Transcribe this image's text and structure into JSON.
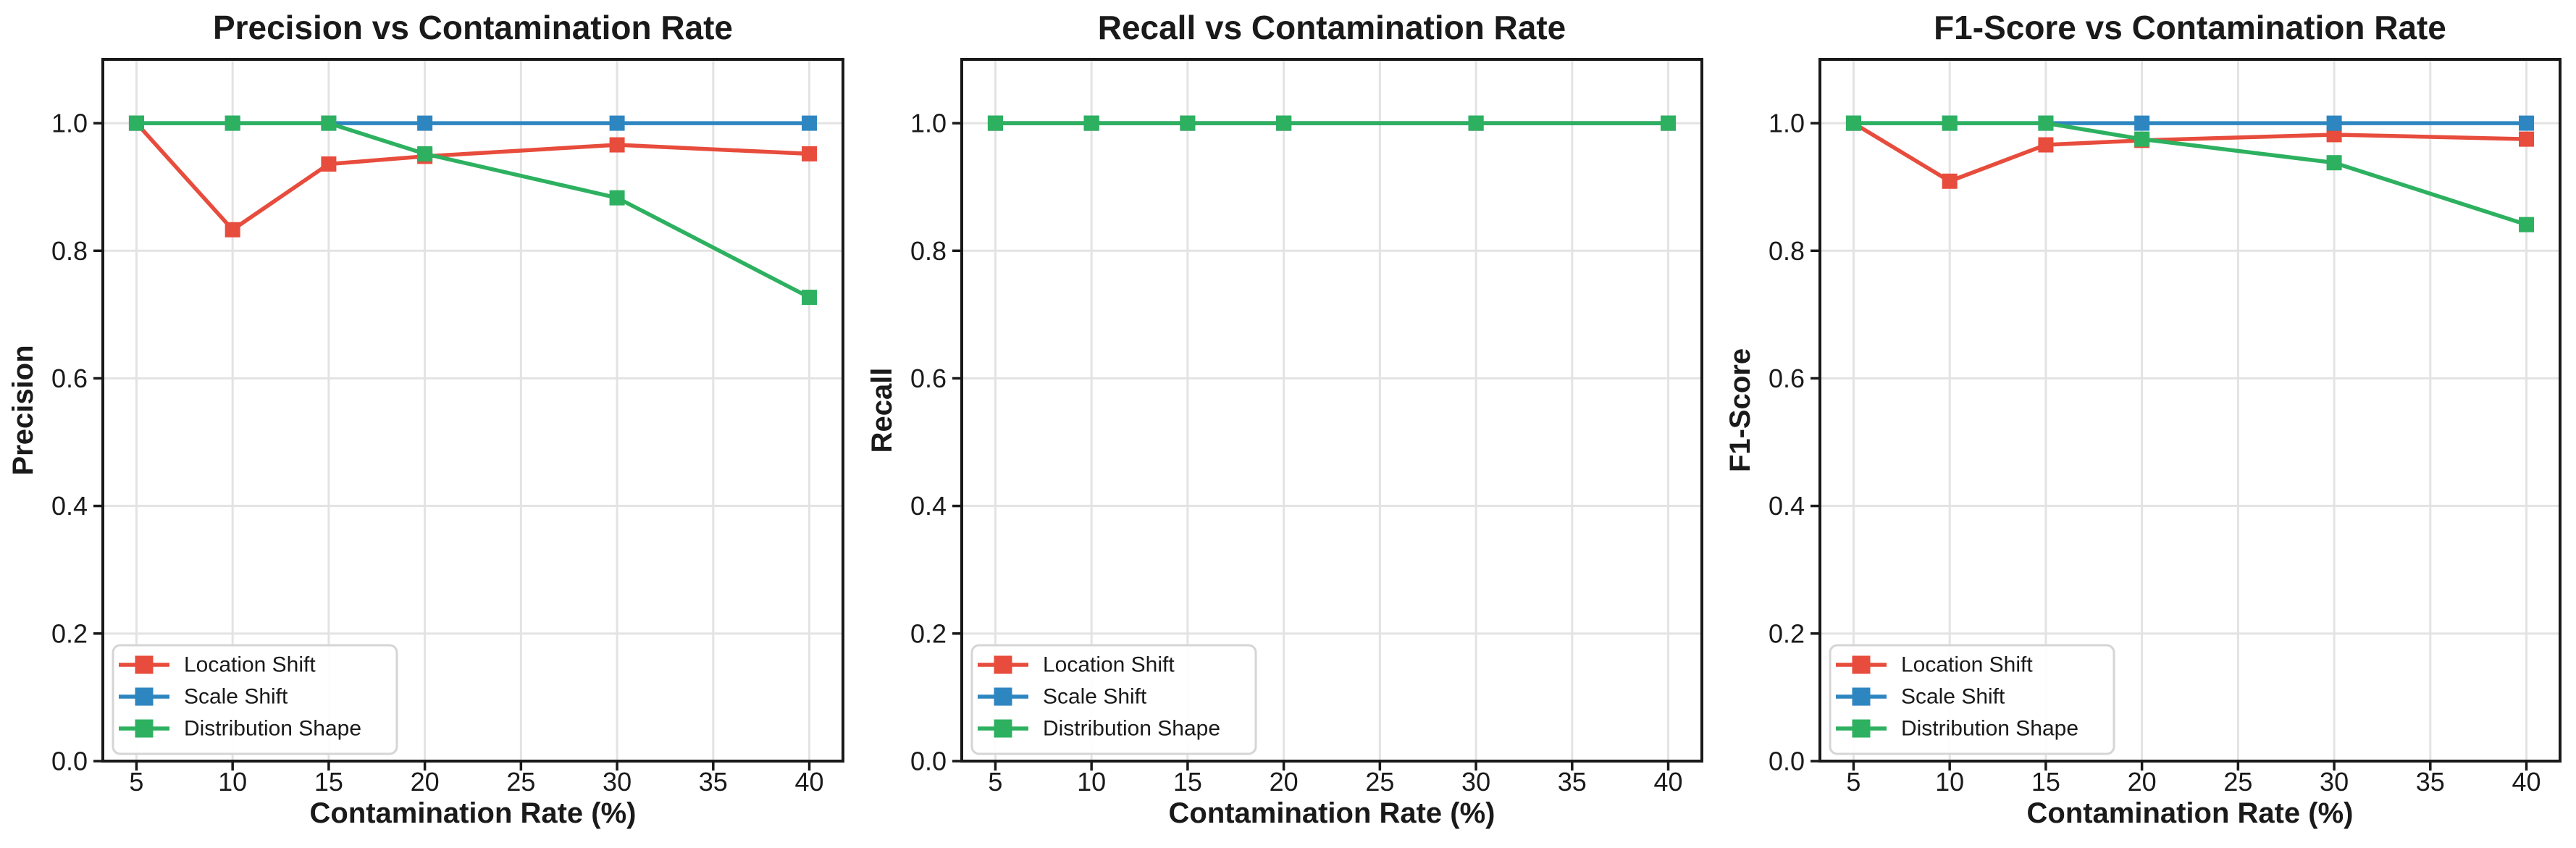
{
  "figure": {
    "background": "#ffffff",
    "text_color": "#1a1a1a",
    "grid_color": "#e3e3e3",
    "spine_color": "#191919",
    "legend_border_color": "#d5d5d5"
  },
  "chart_data": [
    {
      "type": "line",
      "title": "Precision vs Contamination Rate",
      "xlabel": "Contamination Rate (%)",
      "ylabel": "Precision",
      "x": [
        5,
        10,
        15,
        20,
        30,
        40
      ],
      "xlim": [
        3.25,
        41.75
      ],
      "ylim": [
        0,
        1.1
      ],
      "xticks": [
        5,
        10,
        15,
        20,
        25,
        30,
        35,
        40
      ],
      "xtick_labels": [
        "5",
        "10",
        "15",
        "20",
        "25",
        "30",
        "35",
        "40"
      ],
      "yticks": [
        0.0,
        0.2,
        0.4,
        0.6,
        0.8,
        1.0
      ],
      "ytick_labels": [
        "0.0",
        "0.2",
        "0.4",
        "0.6",
        "0.8",
        "1.0"
      ],
      "grid": true,
      "legend": {
        "position": "lower-left",
        "entries": [
          "Location Shift",
          "Scale Shift",
          "Distribution Shape"
        ]
      },
      "series": [
        {
          "name": "Location Shift",
          "color": "#e74c3c",
          "marker": "square",
          "values": [
            1.0,
            0.833,
            0.936,
            0.948,
            0.966,
            0.952
          ]
        },
        {
          "name": "Scale Shift",
          "color": "#2e86c1",
          "marker": "square",
          "values": [
            1.0,
            1.0,
            1.0,
            1.0,
            1.0,
            1.0
          ]
        },
        {
          "name": "Distribution Shape",
          "color": "#2db160",
          "marker": "square",
          "values": [
            1.0,
            1.0,
            1.0,
            0.952,
            0.883,
            0.727
          ]
        }
      ]
    },
    {
      "type": "line",
      "title": "Recall vs Contamination Rate",
      "xlabel": "Contamination Rate (%)",
      "ylabel": "Recall",
      "x": [
        5,
        10,
        15,
        20,
        30,
        40
      ],
      "xlim": [
        3.25,
        41.75
      ],
      "ylim": [
        0,
        1.1
      ],
      "xticks": [
        5,
        10,
        15,
        20,
        25,
        30,
        35,
        40
      ],
      "xtick_labels": [
        "5",
        "10",
        "15",
        "20",
        "25",
        "30",
        "35",
        "40"
      ],
      "yticks": [
        0.0,
        0.2,
        0.4,
        0.6,
        0.8,
        1.0
      ],
      "ytick_labels": [
        "0.0",
        "0.2",
        "0.4",
        "0.6",
        "0.8",
        "1.0"
      ],
      "grid": true,
      "legend": {
        "position": "lower-left",
        "entries": [
          "Location Shift",
          "Scale Shift",
          "Distribution Shape"
        ]
      },
      "series": [
        {
          "name": "Location Shift",
          "color": "#e74c3c",
          "marker": "square",
          "values": [
            1.0,
            1.0,
            1.0,
            1.0,
            1.0,
            1.0
          ]
        },
        {
          "name": "Scale Shift",
          "color": "#2e86c1",
          "marker": "square",
          "values": [
            1.0,
            1.0,
            1.0,
            1.0,
            1.0,
            1.0
          ]
        },
        {
          "name": "Distribution Shape",
          "color": "#2db160",
          "marker": "square",
          "values": [
            1.0,
            1.0,
            1.0,
            1.0,
            1.0,
            1.0
          ]
        }
      ]
    },
    {
      "type": "line",
      "title": "F1-Score vs Contamination Rate",
      "xlabel": "Contamination Rate (%)",
      "ylabel": "F1-Score",
      "x": [
        5,
        10,
        15,
        20,
        30,
        40
      ],
      "xlim": [
        3.25,
        41.75
      ],
      "ylim": [
        0,
        1.1
      ],
      "xticks": [
        5,
        10,
        15,
        20,
        25,
        30,
        35,
        40
      ],
      "xtick_labels": [
        "5",
        "10",
        "15",
        "20",
        "25",
        "30",
        "35",
        "40"
      ],
      "yticks": [
        0.0,
        0.2,
        0.4,
        0.6,
        0.8,
        1.0
      ],
      "ytick_labels": [
        "0.0",
        "0.2",
        "0.4",
        "0.6",
        "0.8",
        "1.0"
      ],
      "grid": true,
      "legend": {
        "position": "lower-left",
        "entries": [
          "Location Shift",
          "Scale Shift",
          "Distribution Shape"
        ]
      },
      "series": [
        {
          "name": "Location Shift",
          "color": "#e74c3c",
          "marker": "square",
          "values": [
            1.0,
            0.909,
            0.966,
            0.973,
            0.982,
            0.975
          ]
        },
        {
          "name": "Scale Shift",
          "color": "#2e86c1",
          "marker": "square",
          "values": [
            1.0,
            1.0,
            1.0,
            1.0,
            1.0,
            1.0
          ]
        },
        {
          "name": "Distribution Shape",
          "color": "#2db160",
          "marker": "square",
          "values": [
            1.0,
            1.0,
            1.0,
            0.975,
            0.938,
            0.841
          ]
        }
      ]
    }
  ]
}
